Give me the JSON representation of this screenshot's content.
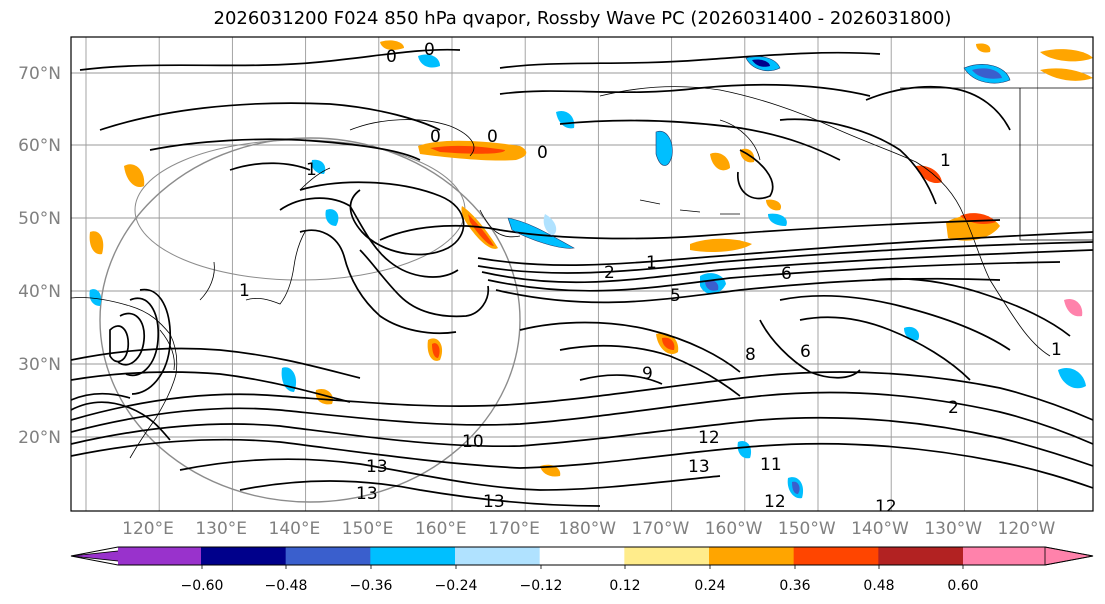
{
  "title": "2026031200 F024 850 hPa qvapor, Rossby Wave PC (2026031400 - 2026031800)",
  "map": {
    "lat_labels": [
      "70°N",
      "60°N",
      "50°N",
      "40°N",
      "30°N",
      "20°N"
    ],
    "lon_labels": [
      "120°E",
      "130°E",
      "140°E",
      "150°E",
      "160°E",
      "170°E",
      "180°W",
      "170°W",
      "160°W",
      "150°W",
      "140°W",
      "130°W",
      "120°W"
    ],
    "contour_labels": [
      {
        "text": "0"
      },
      {
        "text": "0"
      },
      {
        "text": "0"
      },
      {
        "text": "0"
      },
      {
        "text": "0"
      },
      {
        "text": "1"
      },
      {
        "text": "1"
      },
      {
        "text": "1"
      },
      {
        "text": "1"
      },
      {
        "text": "1"
      },
      {
        "text": "2"
      },
      {
        "text": "2"
      },
      {
        "text": "5"
      },
      {
        "text": "6"
      },
      {
        "text": "6"
      },
      {
        "text": "8"
      },
      {
        "text": "9"
      },
      {
        "text": "10"
      },
      {
        "text": "11"
      },
      {
        "text": "12"
      },
      {
        "text": "12"
      },
      {
        "text": "12"
      },
      {
        "text": "13"
      },
      {
        "text": "13"
      },
      {
        "text": "13"
      },
      {
        "text": "13"
      }
    ]
  },
  "colorbar": {
    "tick_labels": [
      "−0.60",
      "−0.48",
      "−0.36",
      "−0.24",
      "−0.12",
      "0.12",
      "0.24",
      "0.36",
      "0.48",
      "0.60"
    ],
    "colors": [
      "#9932cc",
      "#00008b",
      "#3a5fcd",
      "#00bfff",
      "#b0e2ff",
      "#ffffff",
      "#ffec8b",
      "#ffa500",
      "#ff4500",
      "#b22222",
      "#ff82ab"
    ]
  }
}
